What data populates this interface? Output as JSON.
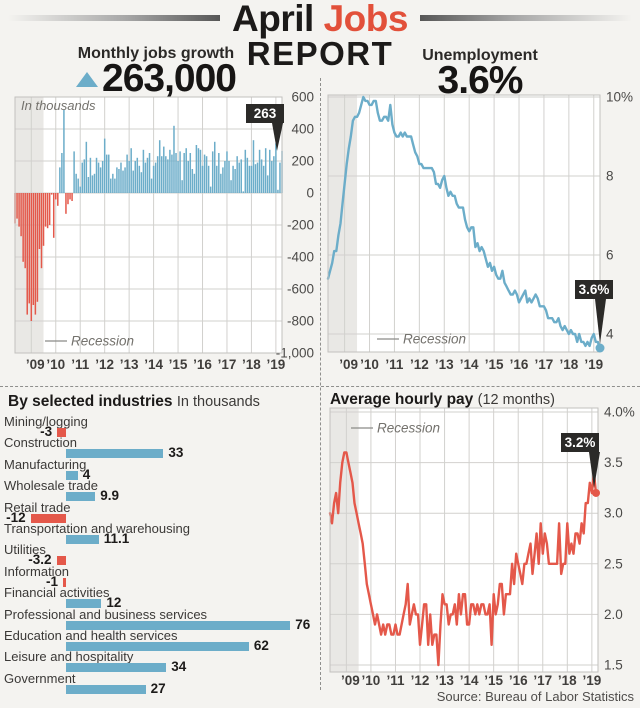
{
  "header": {
    "title_black": "April",
    "title_red": "Jobs",
    "title_line2": "REPORT"
  },
  "jobs_panel": {
    "heading": "Monthly jobs growth",
    "big_number": "263,000",
    "note": "In thousands",
    "recession_label": "Recession",
    "callout": "263"
  },
  "unemployment_panel": {
    "heading": "Unemployment",
    "big_number": "3.6%",
    "recession_label": "Recession",
    "callout": "3.6%"
  },
  "industries_panel": {
    "heading": "By selected industries",
    "subheading": "In thousands"
  },
  "pay_panel": {
    "heading": "Average hourly pay",
    "subheading": "(12 months)",
    "recession_label": "Recession",
    "callout": "3.2%"
  },
  "source": "Source: Bureau of Labor Statistics",
  "colors": {
    "blue": "#6cadc9",
    "red": "#e4584a",
    "dark_callout": "#2b2a28",
    "recession": "#e9e8e5",
    "grid": "#d2d1ce",
    "border": "#c2c1be",
    "page_bg": "#f4f3f0",
    "plot_bg": "#ffffff",
    "title_red": "#e2503a",
    "tick_text": "#4b4a48",
    "x_tick_text": "#403e3c",
    "muted_text": "#74726d"
  },
  "chart_data": [
    {
      "id": "jobs-growth",
      "type": "bar",
      "title": "Monthly jobs growth",
      "ylabel": "In thousands",
      "x_start": "2008-05",
      "x_end": "2019-04",
      "x_tick_labels": [
        "’09",
        "’10",
        "’11",
        "’12",
        "’13",
        "’14",
        "’15",
        "’16",
        "’17",
        "’18",
        "’19"
      ],
      "y_ticks": [
        600,
        400,
        200,
        0,
        -200,
        -400,
        -600,
        -800,
        -1000
      ],
      "y_tick_labels": [
        "600",
        "400",
        "200",
        "0",
        "-200",
        "-400",
        "-600",
        "-800",
        "-1,000"
      ],
      "ylim": [
        -1000,
        600
      ],
      "recession_months": 14,
      "callout_value": 263,
      "values": [
        -190,
        -160,
        -210,
        -270,
        -430,
        -470,
        -760,
        -690,
        -800,
        -700,
        -760,
        -680,
        -350,
        -470,
        -330,
        -210,
        -220,
        -200,
        -10,
        -280,
        -40,
        -80,
        160,
        250,
        520,
        -130,
        -70,
        -40,
        -50,
        260,
        120,
        90,
        40,
        190,
        210,
        320,
        100,
        220,
        110,
        120,
        220,
        190,
        160,
        200,
        340,
        240,
        240,
        90,
        120,
        90,
        160,
        150,
        190,
        140,
        160,
        240,
        200,
        280,
        140,
        200,
        220,
        170,
        130,
        270,
        190,
        220,
        250,
        90,
        170,
        190,
        230,
        330,
        230,
        290,
        230,
        210,
        270,
        240,
        420,
        250,
        200,
        260,
        80,
        250,
        280,
        200,
        250,
        150,
        120,
        300,
        280,
        270,
        170,
        240,
        230,
        170,
        40,
        260,
        320,
        170,
        250,
        120,
        160,
        200,
        260,
        200,
        80,
        170,
        150,
        230,
        190,
        210,
        10,
        270,
        220,
        170,
        170,
        330,
        180,
        190,
        270,
        210,
        170,
        280,
        110,
        270,
        200,
        230,
        310,
        20,
        190,
        263
      ]
    },
    {
      "id": "unemployment",
      "type": "line",
      "title": "Unemployment",
      "x_start": "2008-05",
      "x_end": "2019-04",
      "x_tick_labels": [
        "’09",
        "’10",
        "’11",
        "’12",
        "’13",
        "’14",
        "’15",
        "’16",
        "’17",
        "’18",
        "’19"
      ],
      "y_ticks": [
        10,
        8,
        6,
        4
      ],
      "y_tick_labels": [
        "10%",
        "8",
        "6",
        "4"
      ],
      "ylim": [
        3.5,
        10.1
      ],
      "recession_months": 14,
      "callout_value": 3.6,
      "values": [
        5.4,
        5.6,
        5.8,
        6.1,
        6.1,
        6.5,
        6.8,
        7.3,
        7.8,
        8.3,
        8.7,
        9.0,
        9.4,
        9.5,
        9.5,
        9.6,
        9.8,
        10.0,
        9.9,
        9.9,
        9.8,
        9.8,
        9.9,
        9.9,
        9.6,
        9.4,
        9.4,
        9.5,
        9.5,
        9.4,
        9.8,
        9.3,
        9.1,
        9.0,
        9.0,
        9.1,
        9.0,
        9.1,
        9.0,
        9.0,
        9.0,
        8.8,
        8.6,
        8.5,
        8.3,
        8.3,
        8.2,
        8.2,
        8.2,
        8.2,
        8.2,
        8.1,
        7.8,
        7.8,
        7.7,
        7.9,
        8.0,
        7.7,
        7.5,
        7.6,
        7.5,
        7.5,
        7.3,
        7.2,
        7.2,
        7.2,
        6.9,
        6.7,
        6.6,
        6.7,
        6.7,
        6.2,
        6.3,
        6.1,
        6.2,
        6.1,
        5.9,
        5.7,
        5.8,
        5.6,
        5.7,
        5.5,
        5.4,
        5.4,
        5.6,
        5.3,
        5.2,
        5.1,
        5.0,
        5.0,
        5.1,
        5.0,
        4.8,
        4.9,
        5.0,
        5.1,
        4.8,
        4.9,
        4.8,
        4.9,
        5.0,
        4.9,
        4.7,
        4.7,
        4.7,
        4.6,
        4.4,
        4.4,
        4.4,
        4.3,
        4.3,
        4.4,
        4.2,
        4.1,
        4.2,
        4.1,
        4.0,
        4.1,
        4.0,
        4.0,
        3.8,
        4.0,
        3.8,
        3.8,
        3.7,
        3.8,
        3.7,
        3.9,
        4.0,
        3.8,
        3.8,
        3.6
      ]
    },
    {
      "id": "industries",
      "type": "bar_horizontal",
      "title": "By selected industries",
      "units": "In thousands",
      "items": [
        {
          "label": "Mining/logging",
          "value": -3,
          "display": "-3"
        },
        {
          "label": "Construction",
          "value": 33,
          "display": "33"
        },
        {
          "label": "Manufacturing",
          "value": 4,
          "display": "4"
        },
        {
          "label": "Wholesale trade",
          "value": 9.9,
          "display": "9.9"
        },
        {
          "label": "Retail trade",
          "value": -12,
          "display": "-12"
        },
        {
          "label": "Transportation and warehousing",
          "value": 11.1,
          "display": "11.1"
        },
        {
          "label": "Utilities",
          "value": -3.2,
          "display": "-3.2"
        },
        {
          "label": "Information",
          "value": -1,
          "display": "-1"
        },
        {
          "label": "Financial activities",
          "value": 12,
          "display": "12"
        },
        {
          "label": "Professional and business services",
          "value": 76,
          "display": "76"
        },
        {
          "label": "Education and health services",
          "value": 62,
          "display": "62"
        },
        {
          "label": "Leisure and hospitality",
          "value": 34,
          "display": "34"
        },
        {
          "label": "Government",
          "value": 27,
          "display": "27"
        }
      ]
    },
    {
      "id": "pay",
      "type": "line",
      "title": "Average hourly pay (12 months)",
      "x_start": "2008-05",
      "x_end": "2019-04",
      "x_tick_labels": [
        "’09",
        "’10",
        "’11",
        "’12",
        "’13",
        "’14",
        "’15",
        "’16",
        "’17",
        "’18",
        "’19"
      ],
      "y_ticks": [
        4.0,
        3.5,
        3.0,
        2.5,
        2.0,
        1.5
      ],
      "y_tick_labels": [
        "4.0%",
        "3.5",
        "3.0",
        "2.5",
        "2.0",
        "1.5"
      ],
      "ylim": [
        1.43,
        4.04
      ],
      "recession_months": 14,
      "callout_value": 3.2,
      "values": [
        3.0,
        2.9,
        3.1,
        3.2,
        3.0,
        3.3,
        3.5,
        3.6,
        3.6,
        3.5,
        3.4,
        3.3,
        3.1,
        3.0,
        2.9,
        2.8,
        2.7,
        2.5,
        2.3,
        2.2,
        2.1,
        2.0,
        1.9,
        2.0,
        1.9,
        1.8,
        1.9,
        1.8,
        1.9,
        1.9,
        1.8,
        1.8,
        1.9,
        1.8,
        1.8,
        1.9,
        2.0,
        2.1,
        2.3,
        1.9,
        2.0,
        2.1,
        2.0,
        2.0,
        1.7,
        1.9,
        2.1,
        2.1,
        1.7,
        2.0,
        1.7,
        1.8,
        1.8,
        1.5,
        1.9,
        2.2,
        2.1,
        2.1,
        1.9,
        2.0,
        2.0,
        2.1,
        1.9,
        2.2,
        2.0,
        2.2,
        2.2,
        1.9,
        1.9,
        2.1,
        2.1,
        2.0,
        2.1,
        2.0,
        2.1,
        2.1,
        2.0,
        2.0,
        2.1,
        1.7,
        2.2,
        2.0,
        2.1,
        2.3,
        2.3,
        2.0,
        2.2,
        2.2,
        2.2,
        2.5,
        2.3,
        2.6,
        2.5,
        2.4,
        2.3,
        2.5,
        2.5,
        2.6,
        2.7,
        2.4,
        2.6,
        2.8,
        2.5,
        2.9,
        2.6,
        2.8,
        2.7,
        2.5,
        2.5,
        2.5,
        2.5,
        2.5,
        2.9,
        2.4,
        2.5,
        2.5,
        2.9,
        2.6,
        2.7,
        2.6,
        2.8,
        2.8,
        2.7,
        2.9,
        2.8,
        3.1,
        3.1,
        3.3,
        3.2,
        3.4,
        3.2,
        3.2
      ]
    }
  ]
}
